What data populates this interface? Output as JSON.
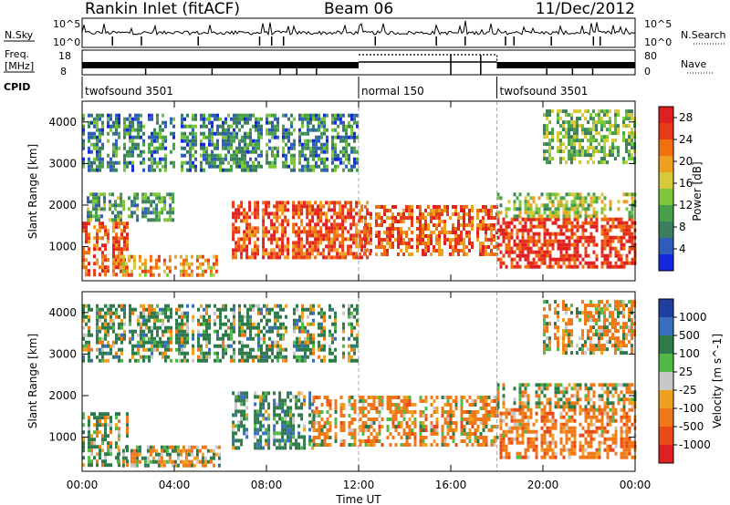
{
  "header": {
    "station": "Rankin Inlet (fitACF)",
    "beam": "Beam 06",
    "date": "11/Dec/2012"
  },
  "status_panels": {
    "nsky_label": "N.Sky",
    "nsearch_label": "N.Search",
    "freq_label_1": "Freq.",
    "freq_label_2": "[MHz]",
    "nave_label": "Nave",
    "cpid_label": "CPID",
    "noise_ticks": [
      "10^5",
      "10^0"
    ],
    "freq_ticks": [
      "18",
      "8"
    ],
    "nave_ticks": [
      "80",
      "0"
    ],
    "cpid_segments": [
      {
        "label": "twofsound 3501",
        "start": 0,
        "end": 12
      },
      {
        "label": "normal 150",
        "start": 12,
        "end": 18
      },
      {
        "label": "twofsound 3501",
        "start": 18,
        "end": 24
      }
    ]
  },
  "chart_data": [
    {
      "type": "heatmap",
      "quantity": "Power",
      "ylabel": "Slant Range [km]",
      "xlabel": "Time UT",
      "xlim": [
        0,
        24
      ],
      "ylim": [
        180,
        4500
      ],
      "x_ticks": [
        "00:00",
        "04:00",
        "08:00",
        "12:00",
        "16:00",
        "20:00",
        "00:00"
      ],
      "y_ticks": [
        1000,
        2000,
        3000,
        4000
      ],
      "colorbar": {
        "label": "Power [dB]",
        "ticks": [
          4,
          8,
          12,
          16,
          20,
          24,
          28
        ],
        "range": [
          0,
          30
        ],
        "colors": [
          "#1428e0",
          "#2e5cb8",
          "#3b7f5e",
          "#48a14a",
          "#7cc63a",
          "#d7c83c",
          "#f0a020",
          "#f07010",
          "#e83a18",
          "#e02020"
        ]
      },
      "regions": [
        {
          "t0": 0.0,
          "t1": 2.0,
          "r0": 300,
          "r1": 1600,
          "level": 24
        },
        {
          "t0": 0.2,
          "t1": 4.0,
          "r0": 1600,
          "r1": 2300,
          "level": 10
        },
        {
          "t0": 1.5,
          "t1": 6.0,
          "r0": 300,
          "r1": 800,
          "level": 20
        },
        {
          "t0": 6.5,
          "t1": 12.5,
          "r0": 700,
          "r1": 2100,
          "level": 25
        },
        {
          "t0": 12.0,
          "t1": 18.0,
          "r0": 800,
          "r1": 2000,
          "level": 24
        },
        {
          "t0": 18.0,
          "t1": 24.0,
          "r0": 500,
          "r1": 1700,
          "level": 27
        },
        {
          "t0": 18.0,
          "t1": 24.0,
          "r0": 1700,
          "r1": 2300,
          "level": 14
        },
        {
          "t0": 0.0,
          "t1": 12.0,
          "r0": 2800,
          "r1": 4200,
          "level": 8
        },
        {
          "t0": 20.0,
          "t1": 24.0,
          "r0": 3000,
          "r1": 4300,
          "level": 12
        }
      ]
    },
    {
      "type": "heatmap",
      "quantity": "Velocity",
      "ylabel": "Slant Range [km]",
      "xlabel": "Time UT",
      "xlim": [
        0,
        24
      ],
      "ylim": [
        180,
        4500
      ],
      "x_ticks": [
        "00:00",
        "04:00",
        "08:00",
        "12:00",
        "16:00",
        "20:00",
        "00:00"
      ],
      "y_ticks": [
        1000,
        2000,
        3000,
        4000
      ],
      "colorbar": {
        "label": "Velocity [m s^-1]",
        "ticks": [
          1000,
          500,
          100,
          25,
          -25,
          -100,
          -500,
          -1000
        ],
        "colors": [
          "#1e3fa0",
          "#3a6fc0",
          "#2e7a4a",
          "#52b848",
          "#c8c8c8",
          "#f0a020",
          "#f07818",
          "#e84a18",
          "#e02020"
        ]
      },
      "regions": [
        {
          "t0": 0.0,
          "t1": 2.0,
          "r0": 300,
          "r1": 1600,
          "level": 150
        },
        {
          "t0": 1.5,
          "t1": 6.0,
          "r0": 300,
          "r1": 800,
          "level": 0
        },
        {
          "t0": 6.5,
          "t1": 10.0,
          "r0": 700,
          "r1": 2100,
          "level": 300
        },
        {
          "t0": 10.0,
          "t1": 18.0,
          "r0": 800,
          "r1": 2000,
          "level": -200
        },
        {
          "t0": 18.0,
          "t1": 24.0,
          "r0": 500,
          "r1": 1700,
          "level": -300
        },
        {
          "t0": 18.0,
          "t1": 24.0,
          "r0": 1700,
          "r1": 2300,
          "level": 0
        },
        {
          "t0": 0.0,
          "t1": 12.0,
          "r0": 2800,
          "r1": 4200,
          "level": 200
        },
        {
          "t0": 20.0,
          "t1": 24.0,
          "r0": 3000,
          "r1": 4300,
          "level": -150
        }
      ]
    }
  ]
}
